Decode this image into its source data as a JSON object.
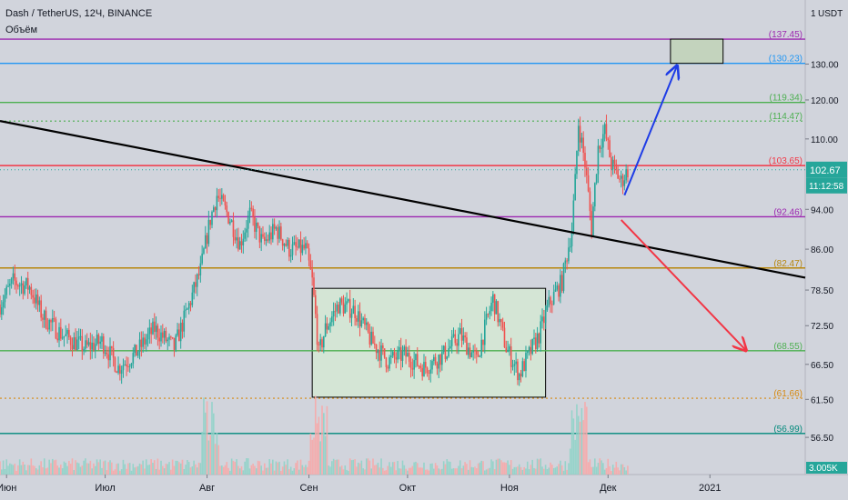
{
  "header": {
    "symbol_line": "Dash / TetherUS, 12Ч, BINANCE",
    "indicator": "Объём"
  },
  "chart_data": {
    "type": "candlestick",
    "price_axis": {
      "unit": "USDT",
      "top_label": "1",
      "scale": "log",
      "ticks": [
        "130.00",
        "120.00",
        "110.00",
        "102.67",
        "94.00",
        "86.00",
        "78.50",
        "72.50",
        "66.50",
        "61.50",
        "56.50"
      ],
      "ylim": [
        52.0,
        150.0
      ]
    },
    "time_axis": {
      "ticks": [
        "Июн",
        "Июл",
        "Авг",
        "Сен",
        "Окт",
        "Ноя",
        "Дек",
        "2021"
      ],
      "xlim": [
        "2020-05-30",
        "2021-01-30"
      ],
      "tick_dates": [
        "2020-06-01",
        "2020-07-01",
        "2020-08-01",
        "2020-09-01",
        "2020-10-01",
        "2020-11-01",
        "2020-12-01",
        "2021-01-01"
      ]
    },
    "last_price": "102.67",
    "countdown": "11:12:58",
    "volume_last": "3.005K",
    "levels": [
      {
        "value": 137.45,
        "label": "(137.45)",
        "color": "#9c27b0",
        "style": "solid"
      },
      {
        "value": 130.23,
        "label": "(130.23)",
        "color": "#2196f3",
        "style": "solid"
      },
      {
        "value": 119.34,
        "label": "(119.34)",
        "color": "#4caf50",
        "style": "solid"
      },
      {
        "value": 114.47,
        "label": "(114.47)",
        "color": "#4caf50",
        "style": "dotted"
      },
      {
        "value": 103.65,
        "label": "(103.65)",
        "color": "#f23645",
        "style": "solid"
      },
      {
        "value": 92.46,
        "label": "(92.46)",
        "color": "#9c27b0",
        "style": "solid"
      },
      {
        "value": 82.47,
        "label": "(82.47)",
        "color": "#b8860b",
        "style": "solid"
      },
      {
        "value": 68.55,
        "label": "(68.55)",
        "color": "#4caf50",
        "style": "solid"
      },
      {
        "value": 61.66,
        "label": "(61.66)",
        "color": "#d68910",
        "style": "dotted"
      },
      {
        "value": 56.99,
        "label": "(56.99)",
        "color": "#00897b",
        "style": "solid"
      }
    ],
    "trendline": {
      "start": {
        "date": "2020-05-30",
        "price": 114.5
      },
      "end": {
        "date": "2021-01-30",
        "price": 80.7
      },
      "color": "#000000"
    },
    "range_box": {
      "start": "2020-09-02",
      "end": "2020-11-12",
      "low": 61.8,
      "high": 78.8,
      "fill": "#d5e8d4",
      "stroke": "#000000"
    },
    "target_box": {
      "start": "2020-12-20",
      "end": "2021-01-05",
      "low": 130.23,
      "high": 137.45,
      "fill": "#c3d3bd",
      "stroke": "#000000"
    },
    "arrows": [
      {
        "name": "bullish",
        "color": "#1e3ce6",
        "from": {
          "date": "2020-12-06",
          "price": 97.0
        },
        "to": {
          "date": "2020-12-22",
          "price": 129.5
        }
      },
      {
        "name": "bearish",
        "color": "#f23645",
        "from": {
          "date": "2020-12-05",
          "price": 91.8
        },
        "to": {
          "date": "2021-01-12",
          "price": 68.6
        }
      }
    ],
    "candles": {
      "timeframe": "12h",
      "anchors": [
        [
          "2020-05-30",
          76
        ],
        [
          "2020-06-03",
          80
        ],
        [
          "2020-06-08",
          79
        ],
        [
          "2020-06-12",
          74
        ],
        [
          "2020-06-18",
          71
        ],
        [
          "2020-06-25",
          69
        ],
        [
          "2020-06-30",
          70
        ],
        [
          "2020-07-05",
          66
        ],
        [
          "2020-07-10",
          68
        ],
        [
          "2020-07-16",
          72
        ],
        [
          "2020-07-22",
          69
        ],
        [
          "2020-07-26",
          75
        ],
        [
          "2020-07-30",
          82
        ],
        [
          "2020-08-02",
          92
        ],
        [
          "2020-08-04",
          97
        ],
        [
          "2020-08-08",
          92
        ],
        [
          "2020-08-11",
          87
        ],
        [
          "2020-08-14",
          93
        ],
        [
          "2020-08-18",
          87
        ],
        [
          "2020-08-22",
          90
        ],
        [
          "2020-08-26",
          86
        ],
        [
          "2020-08-31",
          86
        ],
        [
          "2020-09-02",
          80
        ],
        [
          "2020-09-04",
          68
        ],
        [
          "2020-09-06",
          72
        ],
        [
          "2020-09-10",
          76
        ],
        [
          "2020-09-15",
          75
        ],
        [
          "2020-09-20",
          70
        ],
        [
          "2020-09-25",
          67
        ],
        [
          "2020-09-30",
          68
        ],
        [
          "2020-10-06",
          66
        ],
        [
          "2020-10-12",
          68
        ],
        [
          "2020-10-17",
          71
        ],
        [
          "2020-10-22",
          67
        ],
        [
          "2020-10-27",
          77
        ],
        [
          "2020-10-31",
          69
        ],
        [
          "2020-11-04",
          65
        ],
        [
          "2020-11-07",
          68
        ],
        [
          "2020-11-10",
          71
        ],
        [
          "2020-11-13",
          76
        ],
        [
          "2020-11-17",
          80
        ],
        [
          "2020-11-20",
          90
        ],
        [
          "2020-11-21",
          100
        ],
        [
          "2020-11-22",
          114
        ],
        [
          "2020-11-24",
          104
        ],
        [
          "2020-11-26",
          90
        ],
        [
          "2020-11-28",
          108
        ],
        [
          "2020-11-30",
          112
        ],
        [
          "2020-12-02",
          104
        ],
        [
          "2020-12-05",
          100
        ],
        [
          "2020-12-07",
          102.67
        ]
      ]
    },
    "volume": {
      "color_up": "#8fd3c8",
      "color_down": "#f7a9a9",
      "note_peaks": [
        "2020-08-02",
        "2020-09-04",
        "2020-11-22"
      ]
    }
  }
}
